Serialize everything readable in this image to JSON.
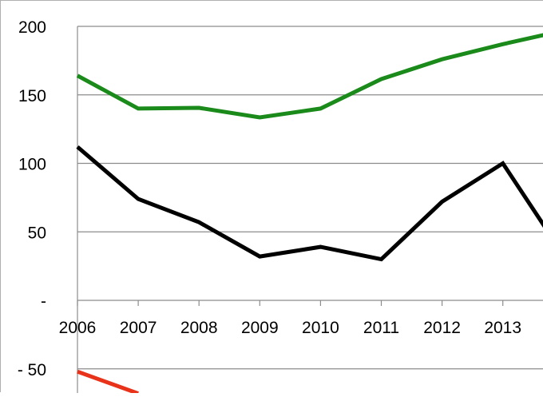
{
  "chart_data": {
    "type": "line",
    "categories": [
      "2006",
      "2007",
      "2008",
      "2009",
      "2010",
      "2011",
      "2012",
      "2013"
    ],
    "y_tick_labels": [
      {
        "value": 200,
        "label": "200"
      },
      {
        "value": 150,
        "label": "150"
      },
      {
        "value": 100,
        "label": "100"
      },
      {
        "value": 50,
        "label": "50"
      },
      {
        "value": 0,
        "label": "-"
      },
      {
        "value": -50,
        "label": "- 50"
      }
    ],
    "ylim": [
      -67,
      210
    ],
    "grid": true,
    "series": [
      {
        "color": "#1a8a1a",
        "points": [
          [
            2006,
            164
          ],
          [
            2007,
            140
          ],
          [
            2008,
            140.5
          ],
          [
            2009,
            133.5
          ],
          [
            2010,
            140
          ],
          [
            2011,
            161.5
          ],
          [
            2012,
            176
          ],
          [
            2013,
            187
          ],
          [
            2013.7,
            194
          ]
        ]
      },
      {
        "color": "#000000",
        "points": [
          [
            2006,
            112
          ],
          [
            2007,
            74
          ],
          [
            2008,
            57
          ],
          [
            2009,
            32
          ],
          [
            2010,
            39
          ],
          [
            2011,
            30
          ],
          [
            2012,
            72
          ],
          [
            2013,
            100
          ],
          [
            2013.7,
            53
          ]
        ]
      },
      {
        "color": "#e8321a",
        "points": [
          [
            2006,
            -52
          ],
          [
            2007,
            -68
          ]
        ]
      }
    ],
    "xlabel": "",
    "ylabel": ""
  }
}
